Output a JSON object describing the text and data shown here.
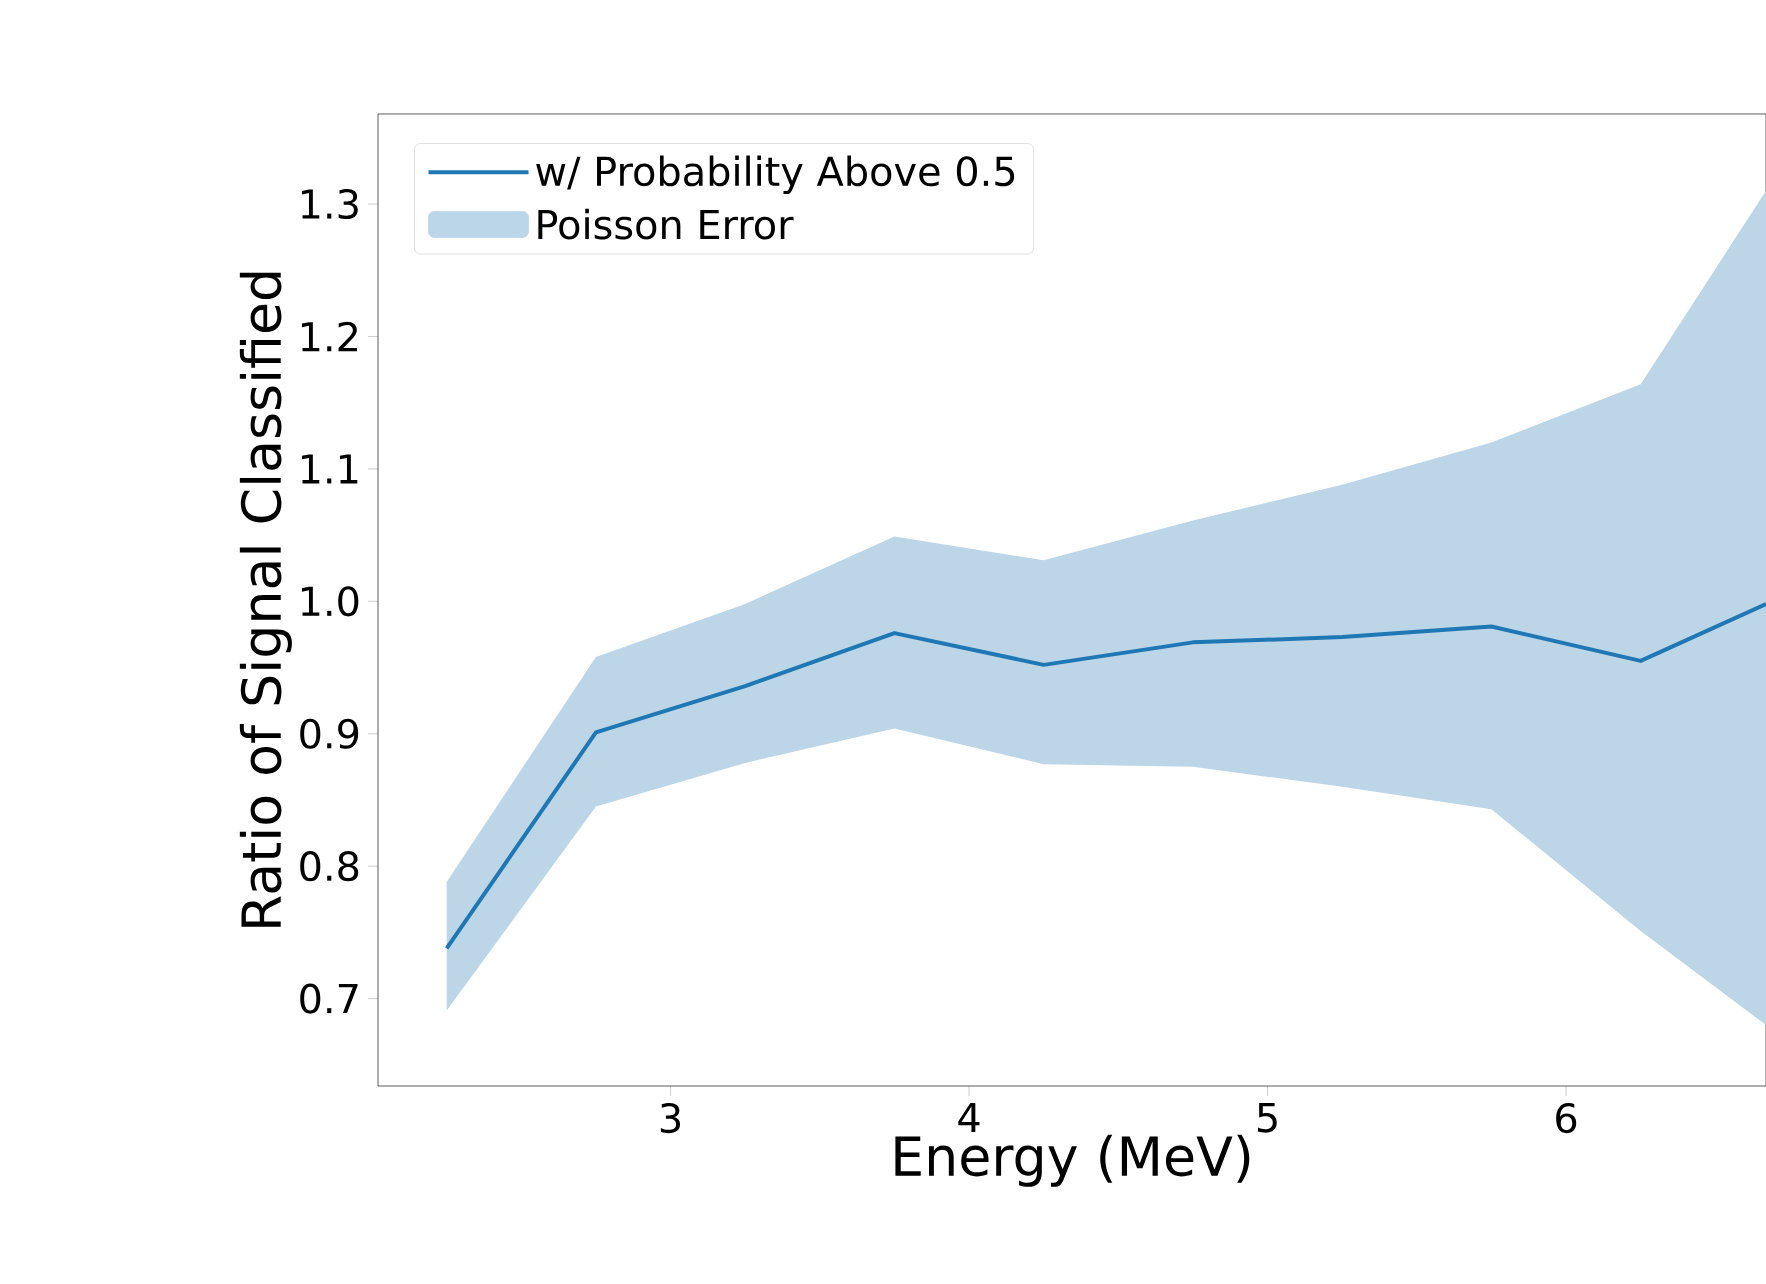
{
  "chart_data": {
    "type": "line",
    "xlabel": "Energy (MeV)",
    "ylabel": "Ratio of Signal Classified",
    "x": [
      2.25,
      2.75,
      3.25,
      3.75,
      4.25,
      4.75,
      5.25,
      5.75,
      6.25,
      6.67
    ],
    "series": [
      {
        "name": "w/ Probability Above 0.5",
        "color": "#1f77b4",
        "values": [
          0.738,
          0.901,
          0.936,
          0.976,
          0.952,
          0.969,
          0.973,
          0.981,
          0.955,
          0.998
        ],
        "lower": [
          0.691,
          0.845,
          0.878,
          0.904,
          0.877,
          0.875,
          0.86,
          0.843,
          0.751,
          0.68
        ],
        "upper": [
          0.788,
          0.958,
          0.998,
          1.049,
          1.031,
          1.061,
          1.088,
          1.12,
          1.164,
          1.31
        ]
      }
    ],
    "annotations": [
      "Poisson Error"
    ],
    "xlim": [
      2.02,
      6.67
    ],
    "ylim": [
      0.634,
      1.368
    ],
    "xticks": [
      3,
      4,
      5,
      6
    ],
    "yticks": [
      0.7,
      0.8,
      0.9,
      {
        "value": 1.0,
        "label": "1.0"
      },
      1.1,
      1.2,
      1.3
    ],
    "legend": "top left",
    "grid": false,
    "marker": "none",
    "line_style": "solid"
  }
}
